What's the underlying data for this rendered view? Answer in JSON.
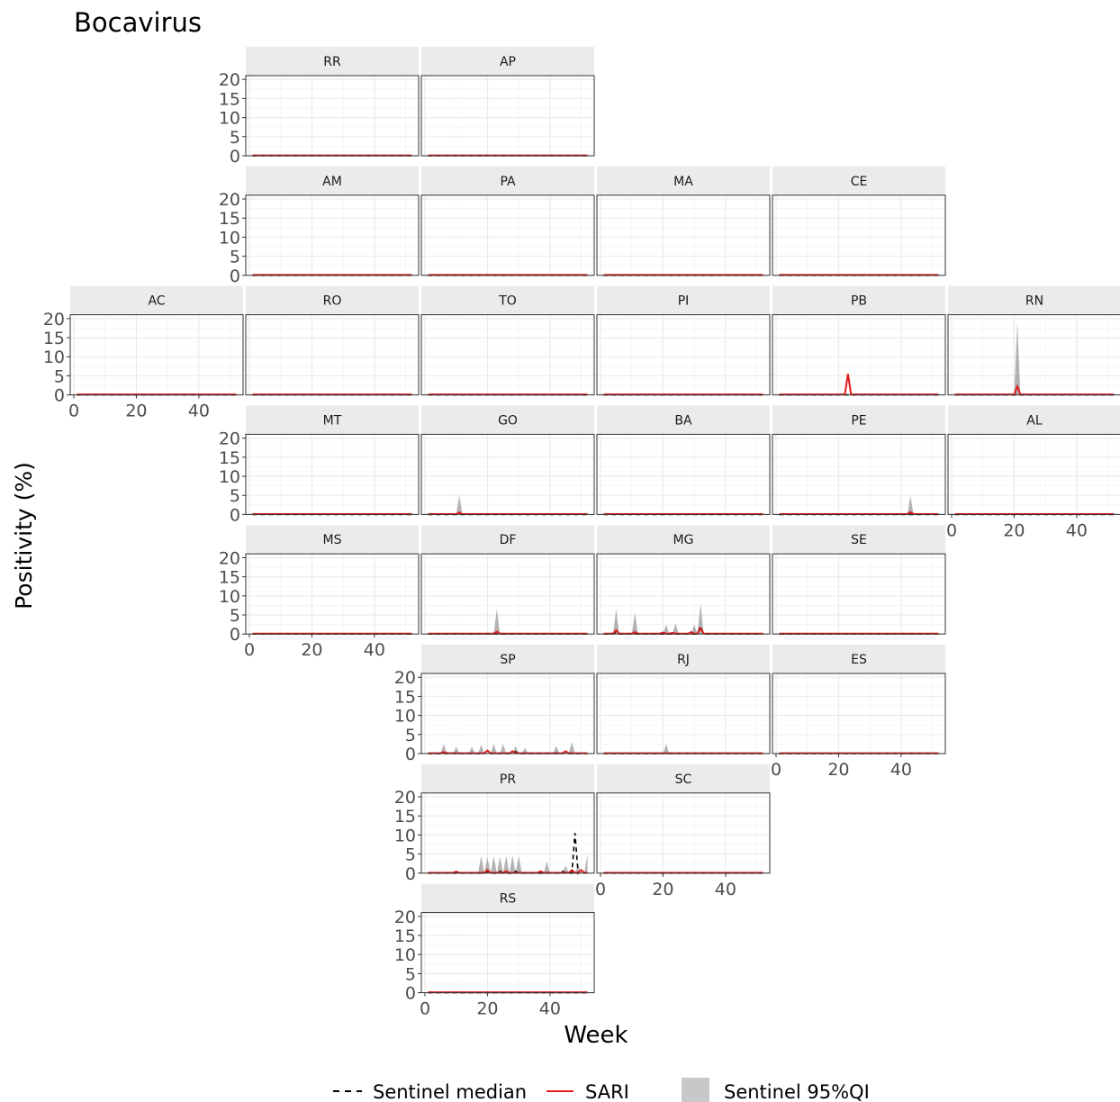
{
  "chart_data": {
    "type": "line",
    "title": "Bocavirus",
    "xlabel": "Week",
    "ylabel": "Positivity (%)",
    "xlim": [
      0,
      53
    ],
    "ylim": [
      0,
      21
    ],
    "x_ticks": [
      0,
      20,
      40
    ],
    "y_ticks": [
      0,
      5,
      10,
      15,
      20
    ],
    "grid": true,
    "legend": {
      "placement": "bottom",
      "items": [
        {
          "label": "Sentinel median",
          "style": "dashed",
          "color": "#000000"
        },
        {
          "label": "SARI",
          "style": "solid",
          "color": "#e41a1c"
        },
        {
          "label": "Sentinel 95%QI",
          "style": "area",
          "color": "#b3b3b3"
        }
      ]
    },
    "colors": {
      "sari": "#e41a1c",
      "median": "#000000",
      "band": "#a6a6a6",
      "strip": "#ebebeb",
      "grid": "#ebebeb"
    },
    "panels": [
      {
        "state": "RR",
        "row": 0,
        "col": 1,
        "sari_peaks": [],
        "median_peaks": [],
        "band_peaks": []
      },
      {
        "state": "AP",
        "row": 0,
        "col": 2,
        "sari_peaks": [],
        "median_peaks": [],
        "band_peaks": []
      },
      {
        "state": "AM",
        "row": 1,
        "col": 1,
        "sari_peaks": [],
        "median_peaks": [],
        "band_peaks": []
      },
      {
        "state": "PA",
        "row": 1,
        "col": 2,
        "sari_peaks": [],
        "median_peaks": [],
        "band_peaks": []
      },
      {
        "state": "MA",
        "row": 1,
        "col": 3,
        "sari_peaks": [],
        "median_peaks": [],
        "band_peaks": []
      },
      {
        "state": "CE",
        "row": 1,
        "col": 4,
        "sari_peaks": [],
        "median_peaks": [],
        "band_peaks": []
      },
      {
        "state": "AC",
        "row": 2,
        "col": 0,
        "sari_peaks": [],
        "median_peaks": [],
        "band_peaks": []
      },
      {
        "state": "RO",
        "row": 2,
        "col": 1,
        "sari_peaks": [],
        "median_peaks": [],
        "band_peaks": []
      },
      {
        "state": "TO",
        "row": 2,
        "col": 2,
        "sari_peaks": [],
        "median_peaks": [],
        "band_peaks": []
      },
      {
        "state": "PI",
        "row": 2,
        "col": 3,
        "sari_peaks": [],
        "median_peaks": [],
        "band_peaks": []
      },
      {
        "state": "PB",
        "row": 2,
        "col": 4,
        "sari_peaks": [
          [
            23,
            5.5
          ]
        ],
        "median_peaks": [],
        "band_peaks": []
      },
      {
        "state": "RN",
        "row": 2,
        "col": 5,
        "sari_peaks": [
          [
            21,
            2.2
          ]
        ],
        "median_peaks": [],
        "band_peaks": [
          [
            21,
            19
          ]
        ]
      },
      {
        "state": "MT",
        "row": 3,
        "col": 1,
        "sari_peaks": [],
        "median_peaks": [],
        "band_peaks": []
      },
      {
        "state": "GO",
        "row": 3,
        "col": 2,
        "sari_peaks": [
          [
            11,
            0.5
          ]
        ],
        "median_peaks": [],
        "band_peaks": [
          [
            11,
            5
          ]
        ]
      },
      {
        "state": "BA",
        "row": 3,
        "col": 3,
        "sari_peaks": [],
        "median_peaks": [],
        "band_peaks": []
      },
      {
        "state": "PE",
        "row": 3,
        "col": 4,
        "sari_peaks": [
          [
            43,
            0.6
          ]
        ],
        "median_peaks": [],
        "band_peaks": [
          [
            43,
            4.8
          ]
        ]
      },
      {
        "state": "AL",
        "row": 3,
        "col": 5,
        "sari_peaks": [],
        "median_peaks": [],
        "band_peaks": []
      },
      {
        "state": "MS",
        "row": 4,
        "col": 1,
        "sari_peaks": [],
        "median_peaks": [],
        "band_peaks": []
      },
      {
        "state": "DF",
        "row": 4,
        "col": 2,
        "sari_peaks": [
          [
            23,
            0.6
          ]
        ],
        "median_peaks": [],
        "band_peaks": [
          [
            23,
            6.5
          ]
        ]
      },
      {
        "state": "MG",
        "row": 4,
        "col": 3,
        "sari_peaks": [
          [
            5,
            1.0
          ],
          [
            11,
            0.5
          ],
          [
            20,
            0.4
          ],
          [
            23,
            0.3
          ],
          [
            29,
            0.5
          ],
          [
            32,
            1.5
          ]
        ],
        "median_peaks": [
          [
            5,
            0.5
          ],
          [
            32,
            2.0
          ]
        ],
        "band_peaks": [
          [
            5,
            6.5
          ],
          [
            11,
            5.5
          ],
          [
            21,
            2.5
          ],
          [
            24,
            2.8
          ],
          [
            30,
            2.5
          ],
          [
            32,
            8
          ]
        ]
      },
      {
        "state": "SE",
        "row": 4,
        "col": 4,
        "sari_peaks": [],
        "median_peaks": [],
        "band_peaks": []
      },
      {
        "state": "SP",
        "row": 5,
        "col": 2,
        "sari_peaks": [
          [
            6,
            0.4
          ],
          [
            20,
            0.8
          ],
          [
            28,
            0.6
          ],
          [
            45,
            0.6
          ]
        ],
        "median_peaks": [
          [
            8,
            0.5
          ],
          [
            20,
            0.8
          ],
          [
            29,
            0.5
          ],
          [
            45,
            0.5
          ]
        ],
        "band_peaks": [
          [
            6,
            2.5
          ],
          [
            10,
            1.8
          ],
          [
            15,
            1.8
          ],
          [
            18,
            2.3
          ],
          [
            22,
            2.5
          ],
          [
            25,
            2.5
          ],
          [
            29,
            2.0
          ],
          [
            32,
            1.5
          ],
          [
            42,
            2.0
          ],
          [
            47,
            3.0
          ]
        ]
      },
      {
        "state": "RJ",
        "row": 5,
        "col": 3,
        "sari_peaks": [],
        "median_peaks": [],
        "band_peaks": [
          [
            21,
            2.5
          ]
        ]
      },
      {
        "state": "ES",
        "row": 5,
        "col": 4,
        "sari_peaks": [],
        "median_peaks": [],
        "band_peaks": []
      },
      {
        "state": "PR",
        "row": 6,
        "col": 2,
        "sari_peaks": [
          [
            10,
            0.4
          ],
          [
            20,
            0.8
          ],
          [
            26,
            0.5
          ],
          [
            37,
            0.5
          ],
          [
            47,
            0.8
          ],
          [
            50,
            0.8
          ]
        ],
        "median_peaks": [
          [
            20,
            0.5
          ],
          [
            24,
            0.5
          ],
          [
            29,
            0.5
          ],
          [
            44,
            0.5
          ],
          [
            48,
            10.5
          ],
          [
            50,
            1.0
          ]
        ],
        "band_peaks": [
          [
            18,
            4.5
          ],
          [
            20,
            4.2
          ],
          [
            22,
            4.5
          ],
          [
            24,
            4.3
          ],
          [
            26,
            4.5
          ],
          [
            28,
            4.6
          ],
          [
            30,
            4.5
          ],
          [
            39,
            3.0
          ],
          [
            45,
            2.0
          ],
          [
            49,
            2.2
          ],
          [
            52,
            5.0
          ]
        ]
      },
      {
        "state": "SC",
        "row": 6,
        "col": 3,
        "sari_peaks": [],
        "median_peaks": [],
        "band_peaks": []
      },
      {
        "state": "RS",
        "row": 7,
        "col": 2,
        "sari_peaks": [],
        "median_peaks": [],
        "band_peaks": []
      }
    ]
  }
}
